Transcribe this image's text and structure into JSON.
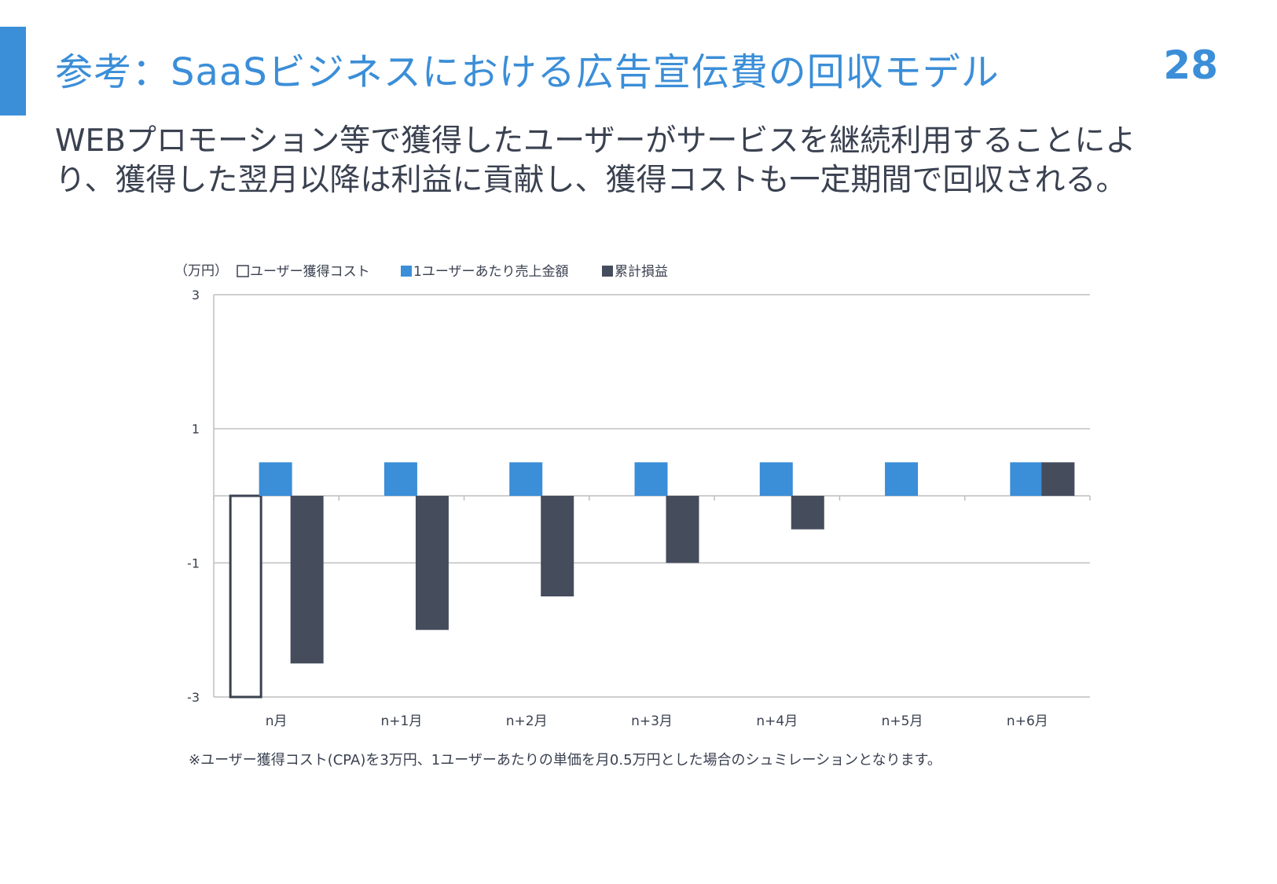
{
  "slide": {
    "title": "参考：SaaSビジネスにおける広告宣伝費の回収モデル",
    "page_number": "28",
    "description_lines": [
      "WEBプロモーション等で獲得したユーザーがサービスを継続利用することによ",
      "り、獲得した翌月以降は利益に貢献し、獲得コストも一定期間で回収される。"
    ],
    "footnote": "※ユーザー獲得コスト(CPA)を3万円、1ユーザーあたりの単価を月0.5万円とした場合のシュミレーションとなります。"
  },
  "colors": {
    "accent": "#3b8ed8",
    "cost_outline": "#3a4150",
    "revenue": "#3b8ed8",
    "cumulative": "#454c5c",
    "text": "#3a4150",
    "grid": "#bfbfbf"
  },
  "chart_data": {
    "type": "bar",
    "unit_label": "（万円）",
    "categories": [
      "n月",
      "n+1月",
      "n+2月",
      "n+3月",
      "n+4月",
      "n+5月",
      "n+6月"
    ],
    "series": [
      {
        "name": "ユーザー獲得コスト",
        "style": "outline",
        "values": [
          -3,
          0,
          0,
          0,
          0,
          0,
          0
        ]
      },
      {
        "name": "1ユーザーあたり売上金額",
        "style": "filled",
        "values": [
          0.5,
          0.5,
          0.5,
          0.5,
          0.5,
          0.5,
          0.5
        ]
      },
      {
        "name": "累計損益",
        "style": "filled",
        "values": [
          -2.5,
          -2,
          -1.5,
          -1,
          -0.5,
          0,
          0.5
        ]
      }
    ],
    "yticks": [
      3,
      1,
      -1,
      -3
    ],
    "ylim": [
      -3,
      3
    ],
    "grid": true,
    "legend": "top-left"
  }
}
